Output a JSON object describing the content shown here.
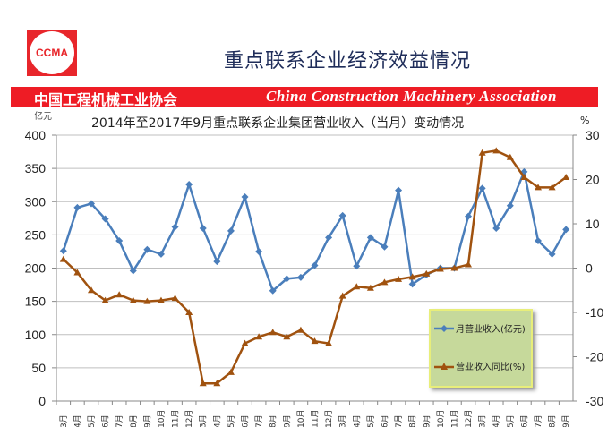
{
  "header": {
    "logo_text": "CCMA",
    "title": "重点联系企业经济效益情况",
    "banner_cn": "中国工程机械工业协会",
    "banner_en": "China Construction Machinery Association"
  },
  "colors": {
    "revenue": "#4a7ebb",
    "yoy": "#a0520f",
    "banner": "#ee1c25",
    "legend_bg": "#c6d99b"
  },
  "chart_data": {
    "type": "line",
    "title": "2014年至2017年9月重点联系企业集团营业收入（当月）变动情况",
    "ylabel_left": "亿元",
    "ylabel_right": "%",
    "ylim_left": [
      0,
      400
    ],
    "yticks_left": [
      "0",
      "50",
      "100",
      "150",
      "200",
      "250",
      "300",
      "350",
      "400"
    ],
    "ylim_right": [
      -30,
      30
    ],
    "yticks_right": [
      "-30",
      "-20",
      "-10",
      "0",
      "10",
      "20",
      "30"
    ],
    "grid": true,
    "legend_placement": "lower-right",
    "categories": [
      "3月",
      "4月",
      "5月",
      "6月",
      "7月",
      "8月",
      "9月",
      "10月",
      "11月",
      "12月",
      "3月",
      "4月",
      "5月",
      "6月",
      "7月",
      "8月",
      "9月",
      "10月",
      "11月",
      "12月",
      "3月",
      "4月",
      "5月",
      "6月",
      "7月",
      "8月",
      "9月",
      "10月",
      "11月",
      "12月",
      "3月",
      "4月",
      "5月",
      "6月",
      "7月",
      "8月",
      "9月"
    ],
    "series": [
      {
        "name": "月营业收入(亿元)",
        "axis": "left",
        "marker": "diamond",
        "values": [
          226,
          291,
          297,
          274,
          241,
          196,
          228,
          221,
          262,
          326,
          260,
          210,
          256,
          307,
          225,
          166,
          184,
          186,
          204,
          246,
          279,
          203,
          246,
          232,
          317,
          176,
          190,
          200,
          200,
          278,
          320,
          260,
          294,
          345,
          241,
          221,
          258
        ]
      },
      {
        "name": "营业收入同比(%)",
        "axis": "right",
        "marker": "triangle",
        "values": [
          2,
          -1,
          -5,
          -7.3,
          -6,
          -7.3,
          -7.5,
          -7.3,
          -6.8,
          -10,
          -26,
          -26,
          -23.5,
          -17,
          -15.5,
          -14.5,
          -15.5,
          -14,
          -16.5,
          -17,
          -6.3,
          -4.2,
          -4.5,
          -3.2,
          -2.5,
          -2,
          -1.3,
          -0.2,
          0,
          0.8,
          26,
          26.5,
          25,
          20.5,
          18.2,
          18.2,
          20.5
        ]
      }
    ]
  }
}
